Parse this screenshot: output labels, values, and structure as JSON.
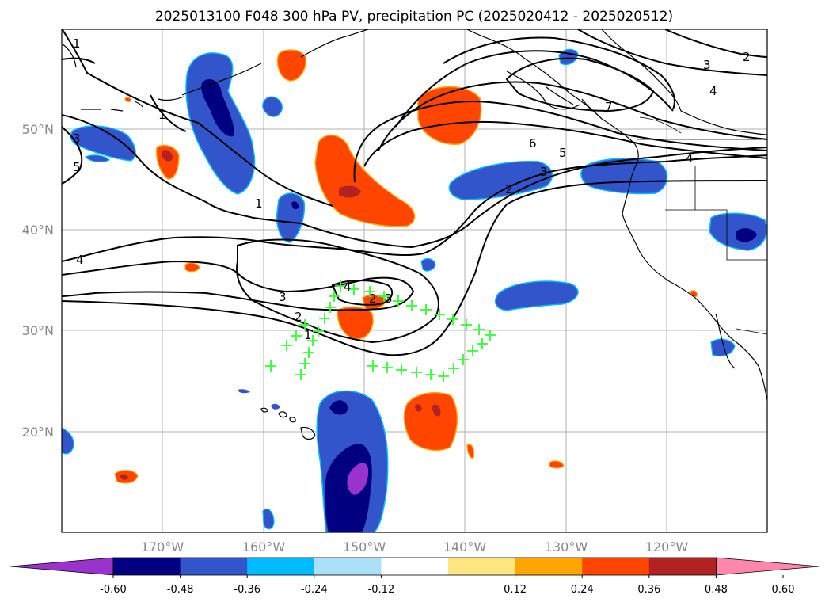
{
  "title": "2025013100 F048 300 hPa PV, precipitation PC (2025020412 - 2025020512)",
  "map": {
    "lat_labels": [
      "50°N",
      "40°N",
      "30°N",
      "20°N"
    ],
    "lon_labels": [
      "170°W",
      "160°W",
      "150°W",
      "140°W",
      "130°W",
      "120°W"
    ],
    "lon_range": [
      -180,
      -110
    ],
    "lat_range": [
      10,
      60
    ]
  },
  "pv_contour_labels": [
    "1",
    "1",
    "1",
    "1",
    "2",
    "2",
    "2",
    "3",
    "3",
    "3",
    "3",
    "4",
    "4",
    "4",
    "5",
    "5",
    "6",
    "7",
    "2",
    "3",
    "4"
  ],
  "colorbar": {
    "ticks": [
      "-0.60",
      "-0.48",
      "-0.36",
      "-0.24",
      "-0.12",
      "0.12",
      "0.24",
      "0.36",
      "0.48",
      "0.60"
    ],
    "colors": [
      "#9933cc",
      "#000080",
      "#3355cc",
      "#00bbff",
      "#aae0f8",
      "#ffffff",
      "#ffe680",
      "#ffa500",
      "#ff4500",
      "#b22222",
      "#ff88aa"
    ]
  },
  "colors": {
    "markers": "#33ff33",
    "contour": "#000000",
    "grid": "#b0b0b0"
  }
}
